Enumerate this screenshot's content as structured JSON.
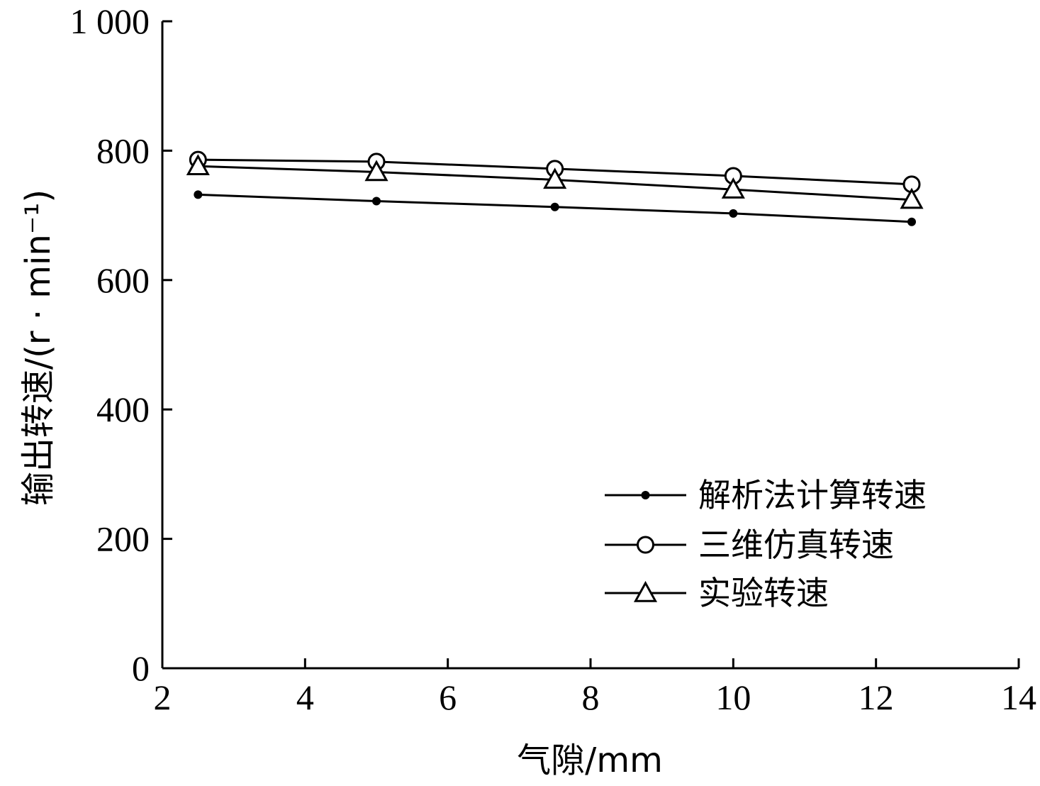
{
  "chart_data": {
    "type": "line",
    "xlabel": "气隙/mm",
    "ylabel": "输出转速/(r · min⁻¹)",
    "xlim": [
      2,
      14
    ],
    "ylim": [
      0,
      1000
    ],
    "x_ticks": [
      "2",
      "4",
      "6",
      "8",
      "10",
      "12",
      "14"
    ],
    "y_ticks": [
      "0",
      "200",
      "400",
      "600",
      "800",
      "1 000"
    ],
    "x": [
      2.5,
      5,
      7.5,
      10,
      12.5
    ],
    "series": [
      {
        "name": "解析法计算转速",
        "marker": "filled-circle",
        "values": [
          732,
          722,
          713,
          703,
          690
        ]
      },
      {
        "name": "三维仿真转速",
        "marker": "open-circle",
        "values": [
          786,
          783,
          772,
          761,
          748
        ]
      },
      {
        "name": "实验转速",
        "marker": "open-triangle",
        "values": [
          776,
          767,
          755,
          740,
          724
        ]
      }
    ],
    "legend_position": "bottom-right",
    "grid": false,
    "line_color": "#000000"
  }
}
